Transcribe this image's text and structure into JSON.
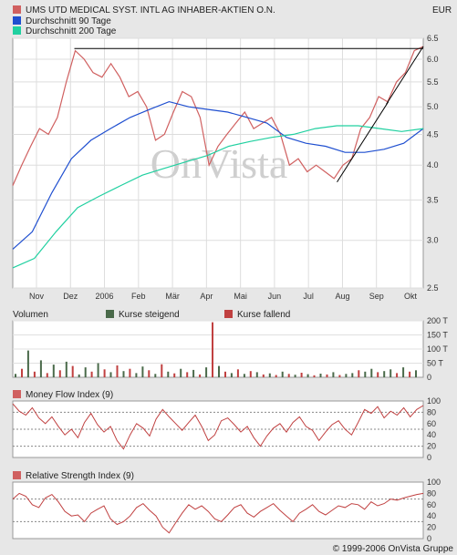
{
  "header": {
    "currency": "EUR",
    "legend": [
      {
        "label": "UMS UTD MEDICAL SYST. INTL AG INHABER-AKTIEN O.N.",
        "color": "#d06060"
      },
      {
        "label": "Durchschnitt 90 Tage",
        "color": "#1f4fd0"
      },
      {
        "label": "Durchschnitt 200 Tage",
        "color": "#20d0a0"
      }
    ]
  },
  "watermark": "OnVista",
  "copyright": "© 1999-2006 OnVista Gruppe",
  "volume_legend": {
    "title": "Volumen",
    "rising": "Kurse steigend",
    "falling": "Kurse fallend",
    "rising_color": "#4a6a4a",
    "falling_color": "#c04040"
  },
  "mfi_title": "Money Flow Index (9)",
  "rsi_title": "Relative Strength Index (9)",
  "chart_data": [
    {
      "type": "line",
      "name": "price",
      "x_labels": [
        "Nov",
        "Dez",
        "2006",
        "Feb",
        "Mär",
        "Apr",
        "Mai",
        "Jun",
        "Jul",
        "Aug",
        "Sep",
        "Okt"
      ],
      "y_ticks": [
        "2.5",
        "3.0",
        "3.5",
        "4.0",
        "4.5",
        "5.0",
        "5.5",
        "6.0",
        "6.5"
      ],
      "ylim": [
        2.5,
        6.5
      ],
      "log_scale": true,
      "grid": true,
      "series": [
        {
          "name": "UMS UTD MEDICAL SYST. INTL AG INHABER-AKTIEN O.N.",
          "color": "#d06060",
          "values": [
            3.7,
            4.0,
            4.3,
            4.6,
            4.5,
            4.8,
            5.5,
            6.2,
            6.0,
            5.7,
            5.6,
            5.9,
            5.6,
            5.2,
            5.3,
            5.0,
            4.4,
            4.5,
            4.9,
            5.3,
            5.2,
            4.8,
            4.0,
            4.3,
            4.5,
            4.7,
            4.9,
            4.6,
            4.7,
            4.8,
            4.5,
            4.0,
            4.1,
            3.9,
            4.0,
            3.9,
            3.8,
            4.0,
            4.1,
            4.6,
            4.8,
            5.2,
            5.1,
            5.5,
            5.7,
            6.2,
            6.3
          ]
        },
        {
          "name": "Durchschnitt 90 Tage",
          "color": "#1f4fd0",
          "values": [
            2.9,
            3.1,
            3.6,
            4.1,
            4.4,
            4.6,
            4.8,
            4.95,
            5.1,
            5.0,
            4.95,
            4.9,
            4.8,
            4.7,
            4.45,
            4.35,
            4.3,
            4.2,
            4.2,
            4.25,
            4.35,
            4.6
          ]
        },
        {
          "name": "Durchschnitt 200 Tage",
          "color": "#20d0a0",
          "values": [
            2.7,
            2.8,
            3.1,
            3.4,
            3.55,
            3.7,
            3.85,
            3.95,
            4.05,
            4.15,
            4.3,
            4.38,
            4.45,
            4.5,
            4.6,
            4.65,
            4.65,
            4.6,
            4.55,
            4.6
          ]
        }
      ],
      "trendlines": [
        {
          "from": [
            0.15,
            6.25
          ],
          "to": [
            1.0,
            6.25
          ]
        },
        {
          "from": [
            0.79,
            3.75
          ],
          "to": [
            0.915,
            5.1
          ]
        },
        {
          "from": [
            0.91,
            5.05
          ],
          "to": [
            1.0,
            6.3
          ]
        }
      ]
    },
    {
      "type": "bar",
      "name": "volume",
      "y_ticks": [
        "0",
        "50 T",
        "100 T",
        "150 T",
        "200 T"
      ],
      "ylim": [
        0,
        200
      ],
      "bars": [
        {
          "v": 12,
          "up": true
        },
        {
          "v": 30,
          "up": false
        },
        {
          "v": 95,
          "up": true
        },
        {
          "v": 20,
          "up": false
        },
        {
          "v": 60,
          "up": true
        },
        {
          "v": 15,
          "up": false
        },
        {
          "v": 45,
          "up": true
        },
        {
          "v": 25,
          "up": false
        },
        {
          "v": 55,
          "up": true
        },
        {
          "v": 40,
          "up": false
        },
        {
          "v": 10,
          "up": true
        },
        {
          "v": 35,
          "up": true
        },
        {
          "v": 20,
          "up": false
        },
        {
          "v": 50,
          "up": true
        },
        {
          "v": 28,
          "up": false
        },
        {
          "v": 18,
          "up": true
        },
        {
          "v": 42,
          "up": false
        },
        {
          "v": 22,
          "up": true
        },
        {
          "v": 30,
          "up": false
        },
        {
          "v": 15,
          "up": true
        },
        {
          "v": 38,
          "up": true
        },
        {
          "v": 25,
          "up": false
        },
        {
          "v": 12,
          "up": true
        },
        {
          "v": 46,
          "up": false
        },
        {
          "v": 20,
          "up": true
        },
        {
          "v": 14,
          "up": false
        },
        {
          "v": 30,
          "up": true
        },
        {
          "v": 18,
          "up": false
        },
        {
          "v": 26,
          "up": true
        },
        {
          "v": 10,
          "up": false
        },
        {
          "v": 35,
          "up": true
        },
        {
          "v": 195,
          "up": false
        },
        {
          "v": 40,
          "up": true
        },
        {
          "v": 20,
          "up": false
        },
        {
          "v": 15,
          "up": true
        },
        {
          "v": 28,
          "up": false
        },
        {
          "v": 12,
          "up": true
        },
        {
          "v": 22,
          "up": false
        },
        {
          "v": 18,
          "up": true
        },
        {
          "v": 10,
          "up": false
        },
        {
          "v": 14,
          "up": true
        },
        {
          "v": 8,
          "up": false
        },
        {
          "v": 20,
          "up": true
        },
        {
          "v": 12,
          "up": false
        },
        {
          "v": 9,
          "up": true
        },
        {
          "v": 16,
          "up": false
        },
        {
          "v": 11,
          "up": true
        },
        {
          "v": 7,
          "up": false
        },
        {
          "v": 13,
          "up": true
        },
        {
          "v": 10,
          "up": false
        },
        {
          "v": 18,
          "up": true
        },
        {
          "v": 8,
          "up": false
        },
        {
          "v": 12,
          "up": true
        },
        {
          "v": 15,
          "up": true
        },
        {
          "v": 25,
          "up": false
        },
        {
          "v": 20,
          "up": true
        },
        {
          "v": 30,
          "up": true
        },
        {
          "v": 18,
          "up": false
        },
        {
          "v": 22,
          "up": true
        },
        {
          "v": 28,
          "up": true
        },
        {
          "v": 15,
          "up": false
        },
        {
          "v": 35,
          "up": true
        },
        {
          "v": 20,
          "up": false
        },
        {
          "v": 25,
          "up": true
        }
      ]
    },
    {
      "type": "line",
      "name": "Money Flow Index (9)",
      "y_ticks": [
        "0",
        "20",
        "40",
        "60",
        "80",
        "100"
      ],
      "ylim": [
        0,
        100
      ],
      "reference_lines": [
        20,
        50,
        80
      ],
      "values": [
        95,
        82,
        75,
        88,
        70,
        60,
        72,
        55,
        40,
        50,
        35,
        62,
        78,
        58,
        45,
        55,
        30,
        15,
        40,
        60,
        52,
        38,
        68,
        85,
        72,
        60,
        48,
        62,
        75,
        55,
        30,
        40,
        65,
        70,
        58,
        45,
        55,
        35,
        20,
        38,
        52,
        60,
        45,
        62,
        72,
        55,
        48,
        30,
        45,
        58,
        65,
        50,
        40,
        62,
        85,
        78,
        90,
        70,
        82,
        75,
        88,
        72,
        85,
        92
      ]
    },
    {
      "type": "line",
      "name": "Relative Strength Index (9)",
      "y_ticks": [
        "0",
        "20",
        "40",
        "60",
        "80",
        "100"
      ],
      "ylim": [
        0,
        100
      ],
      "reference_lines": [
        30,
        70
      ],
      "values": [
        70,
        80,
        75,
        60,
        55,
        72,
        78,
        65,
        48,
        40,
        42,
        30,
        45,
        52,
        58,
        35,
        25,
        30,
        40,
        55,
        62,
        50,
        40,
        20,
        10,
        28,
        45,
        60,
        52,
        58,
        48,
        35,
        30,
        42,
        55,
        60,
        45,
        38,
        48,
        55,
        62,
        50,
        40,
        30,
        45,
        52,
        60,
        48,
        42,
        50,
        58,
        55,
        62,
        60,
        52,
        65,
        58,
        62,
        70,
        68,
        72,
        75,
        78,
        80
      ]
    }
  ]
}
